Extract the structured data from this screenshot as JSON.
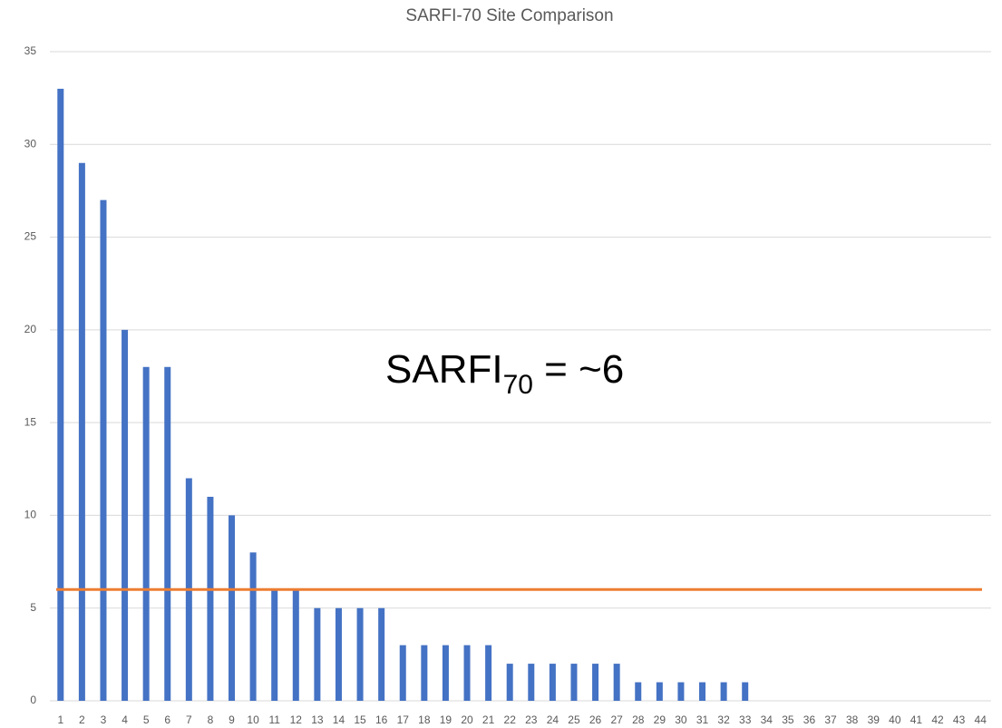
{
  "chart_data": {
    "type": "bar",
    "title": "SARFI-70 Site Comparison",
    "categories": [
      "1",
      "2",
      "3",
      "4",
      "5",
      "6",
      "7",
      "8",
      "9",
      "10",
      "11",
      "12",
      "13",
      "14",
      "15",
      "16",
      "17",
      "18",
      "19",
      "20",
      "21",
      "22",
      "23",
      "24",
      "25",
      "26",
      "27",
      "28",
      "29",
      "30",
      "31",
      "32",
      "33",
      "34",
      "35",
      "36",
      "37",
      "38",
      "39",
      "40",
      "41",
      "42",
      "43",
      "44"
    ],
    "values": [
      33,
      29,
      27,
      20,
      18,
      18,
      12,
      11,
      10,
      8,
      6,
      6,
      5,
      5,
      5,
      5,
      3,
      3,
      3,
      3,
      3,
      2,
      2,
      2,
      2,
      2,
      2,
      1,
      1,
      1,
      1,
      1,
      1,
      0,
      0,
      0,
      0,
      0,
      0,
      0,
      0,
      0,
      0,
      0
    ],
    "color": "#4472c4",
    "ylim": [
      0,
      35
    ],
    "yticks": [
      0,
      5,
      10,
      15,
      20,
      25,
      30,
      35
    ],
    "grid": true,
    "reference_line": {
      "value": 6,
      "color": "#ed7d31"
    },
    "annotation": {
      "text": "SARFI",
      "subscript": "70",
      "suffix": " = ~6"
    }
  }
}
